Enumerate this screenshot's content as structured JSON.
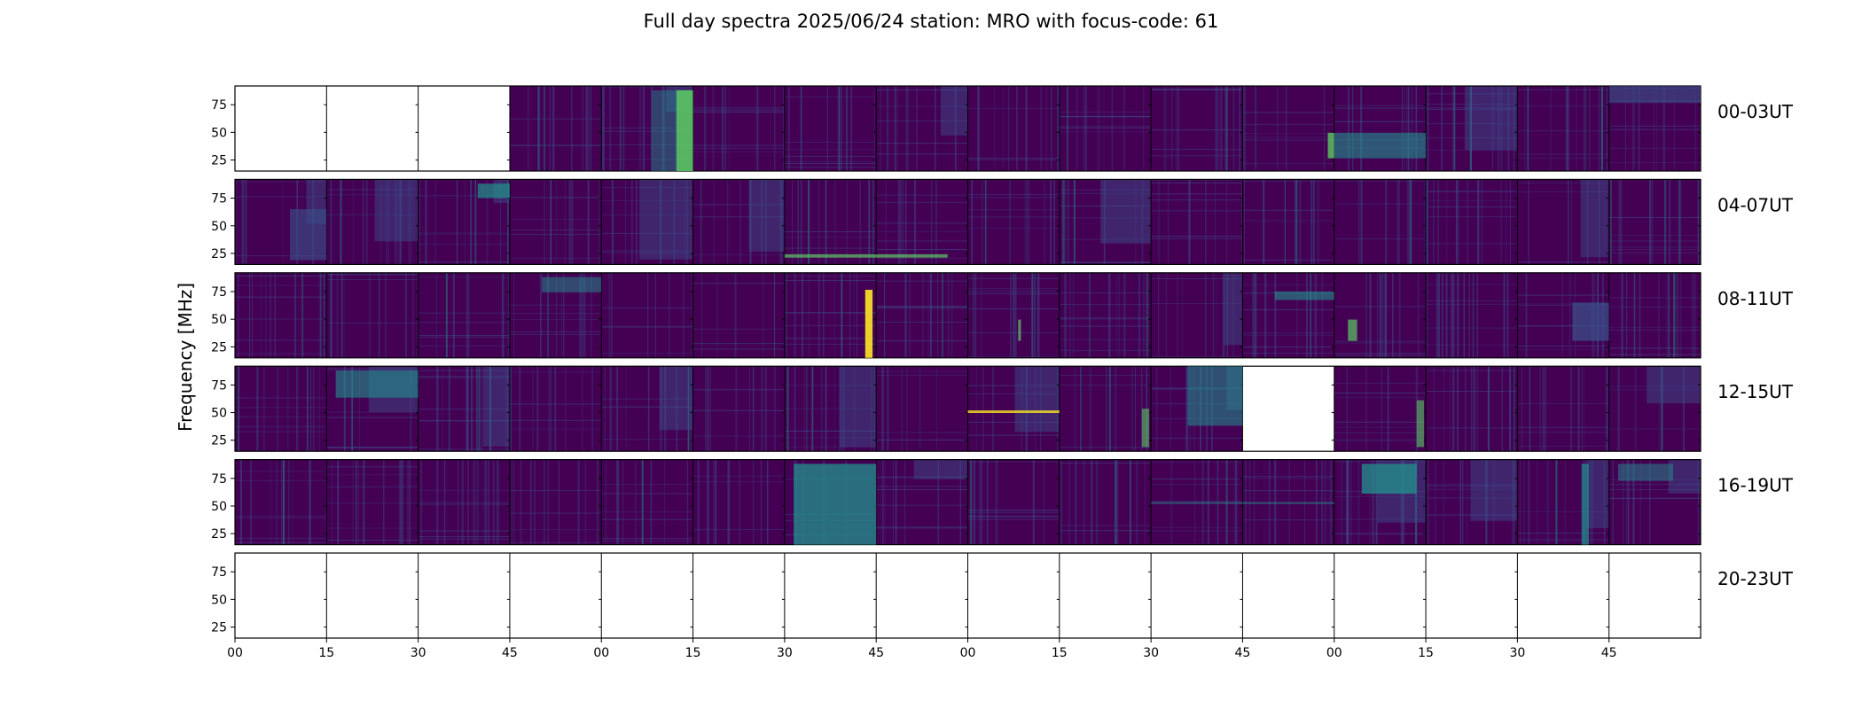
{
  "chart_data": {
    "type": "heatmap",
    "title": "Full day spectra 2025/06/24 station: MRO with focus-code: 61",
    "ylabel": "Frequency [MHz]",
    "xlabel": "",
    "ylim": [
      15,
      92
    ],
    "yticks": [
      25,
      50,
      75
    ],
    "x_tick_labels": [
      "00",
      "15",
      "30",
      "45",
      "00",
      "15",
      "30",
      "45",
      "00",
      "15",
      "30",
      "45",
      "00",
      "15",
      "30",
      "45"
    ],
    "colormap": "viridis",
    "rows": [
      {
        "label": "00-03UT",
        "panels": [
          "empty",
          "empty",
          "empty",
          "data",
          "data",
          "data",
          "data",
          "data",
          "data",
          "data",
          "data",
          "data",
          "data",
          "data",
          "data",
          "data"
        ]
      },
      {
        "label": "04-07UT",
        "panels": [
          "data",
          "data",
          "data",
          "data",
          "data",
          "data",
          "data",
          "data",
          "data",
          "data",
          "data",
          "data",
          "data",
          "data",
          "data",
          "data"
        ]
      },
      {
        "label": "08-11UT",
        "panels": [
          "data",
          "data",
          "data",
          "data",
          "data",
          "data",
          "data",
          "data",
          "data",
          "data",
          "data",
          "data",
          "data",
          "data",
          "data",
          "data"
        ]
      },
      {
        "label": "12-15UT",
        "panels": [
          "data",
          "data",
          "data",
          "data",
          "data",
          "data",
          "data",
          "data",
          "data",
          "data",
          "data",
          "empty",
          "data",
          "data",
          "data",
          "data"
        ]
      },
      {
        "label": "16-19UT",
        "panels": [
          "data",
          "data",
          "data",
          "data",
          "data",
          "data",
          "data",
          "data",
          "data",
          "data",
          "data",
          "data",
          "data",
          "data",
          "data",
          "data"
        ]
      },
      {
        "label": "20-23UT",
        "panels": [
          "empty",
          "empty",
          "empty",
          "empty",
          "empty",
          "empty",
          "empty",
          "empty",
          "empty",
          "empty",
          "empty",
          "empty",
          "empty",
          "empty",
          "empty",
          "empty"
        ]
      }
    ],
    "colors": {
      "background": "#440154",
      "mid": "#3b528b",
      "teal": "#21918c",
      "green": "#5ec962",
      "yellow": "#fde725"
    }
  }
}
